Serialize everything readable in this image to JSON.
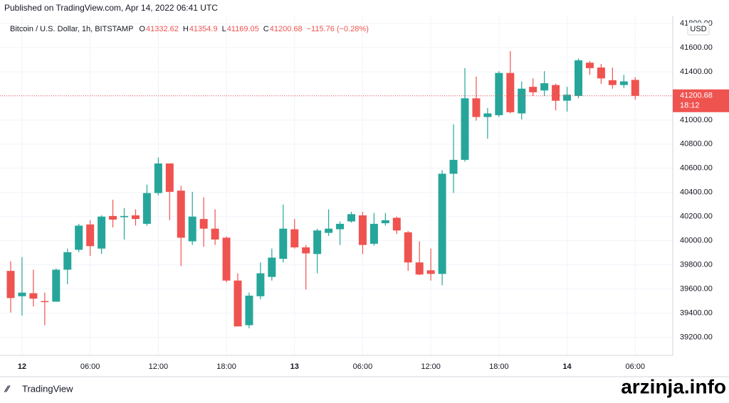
{
  "header": {
    "published": "Published on TradingView.com, Apr 14, 2022 06:41 UTC",
    "symbol": "Bitcoin / U.S. Dollar, 1h, BITSTAMP",
    "open_label": "O",
    "high_label": "H",
    "low_label": "L",
    "close_label": "C",
    "change": "−115.76 (−0.28%)",
    "currency": "USD",
    "countdown": "18:12"
  },
  "footer": {
    "brand": "TradingView",
    "watermark": "arzinja.info"
  },
  "chart_data": {
    "type": "candlestick",
    "categories": [
      null,
      "12",
      null,
      null,
      null,
      null,
      null,
      "06:00",
      null,
      null,
      null,
      null,
      null,
      "12:00",
      null,
      null,
      null,
      null,
      null,
      "18:00",
      null,
      null,
      null,
      null,
      null,
      "13",
      null,
      null,
      null,
      null,
      null,
      "06:00",
      null,
      null,
      null,
      null,
      null,
      "12:00",
      null,
      null,
      null,
      null,
      null,
      "18:00",
      null,
      null,
      null,
      null,
      null,
      "14",
      null,
      null,
      null,
      null,
      null,
      "06:00"
    ],
    "open": [
      39750,
      39540,
      39565,
      39500,
      39495,
      39760,
      39925,
      40135,
      39935,
      40205,
      40195,
      40210,
      40140,
      40395,
      40640,
      40415,
      39995,
      40180,
      40100,
      40025,
      39670,
      39300,
      39540,
      39700,
      39850,
      40095,
      39945,
      39890,
      40065,
      40095,
      40160,
      40210,
      39975,
      40145,
      40190,
      40070,
      39820,
      39755,
      39725,
      40555,
      40670,
      41180,
      41025,
      41040,
      41390,
      41055,
      41275,
      41245,
      41290,
      41160,
      41200,
      41475,
      41435,
      41330,
      41290,
      41332.62
    ],
    "high": [
      39830,
      39865,
      39760,
      39570,
      39770,
      39935,
      40140,
      40170,
      40210,
      40340,
      40270,
      40260,
      40465,
      40690,
      40640,
      40455,
      40405,
      40360,
      40260,
      40035,
      39730,
      39570,
      39820,
      39935,
      40300,
      40180,
      39965,
      40100,
      40260,
      40160,
      40240,
      40240,
      40230,
      40230,
      40200,
      40080,
      39995,
      39935,
      40585,
      40965,
      41430,
      41360,
      41100,
      41405,
      41570,
      41320,
      41345,
      41405,
      41300,
      41275,
      41510,
      41490,
      41465,
      41435,
      41375,
      41354.9
    ],
    "low": [
      39405,
      39380,
      39455,
      39300,
      39495,
      39640,
      39905,
      39875,
      39890,
      40110,
      40010,
      40125,
      40125,
      40375,
      40170,
      39790,
      39965,
      39950,
      39965,
      39655,
      39290,
      39275,
      39515,
      39670,
      39820,
      39935,
      39595,
      39730,
      40040,
      39965,
      40150,
      39890,
      39960,
      40125,
      40055,
      39750,
      39715,
      39670,
      39630,
      40395,
      40655,
      40995,
      40845,
      41025,
      41055,
      41005,
      41200,
      41200,
      41080,
      41070,
      41180,
      41375,
      41300,
      41260,
      41265,
      41169.05
    ],
    "close": [
      39525,
      39570,
      39520,
      39495,
      39760,
      39905,
      40125,
      39955,
      40200,
      40175,
      40205,
      40180,
      40395,
      40640,
      40405,
      40025,
      40200,
      40100,
      40010,
      39670,
      39290,
      39545,
      39730,
      39860,
      40100,
      39945,
      39895,
      40085,
      40100,
      40140,
      40220,
      39965,
      40140,
      40170,
      40085,
      39820,
      39720,
      39725,
      40555,
      40670,
      41180,
      41025,
      41055,
      41390,
      41065,
      41260,
      41230,
      41305,
      41160,
      41210,
      41495,
      41430,
      41345,
      41290,
      41320,
      41200.68
    ],
    "up_color": "#26a69a",
    "down_color": "#ef5350",
    "ylim": [
      39050,
      41865
    ],
    "yticks": [
      {
        "value": 39200,
        "label": "39200.00"
      },
      {
        "value": 39400,
        "label": "39400.00"
      },
      {
        "value": 39600,
        "label": "39600.00"
      },
      {
        "value": 39800,
        "label": "39800.00"
      },
      {
        "value": 40000,
        "label": "40000.00"
      },
      {
        "value": 40200,
        "label": "40200.00"
      },
      {
        "value": 40400,
        "label": "40400.00"
      },
      {
        "value": 40600,
        "label": "40600.00"
      },
      {
        "value": 40800,
        "label": "40800.00"
      },
      {
        "value": 41000,
        "label": "41000.00"
      },
      {
        "value": 41200,
        "label": "41200.00"
      },
      {
        "value": 41400,
        "label": "41400.00"
      },
      {
        "value": 41600,
        "label": "41600.00"
      },
      {
        "value": 41800,
        "label": "41800.00"
      }
    ],
    "grid": true
  }
}
